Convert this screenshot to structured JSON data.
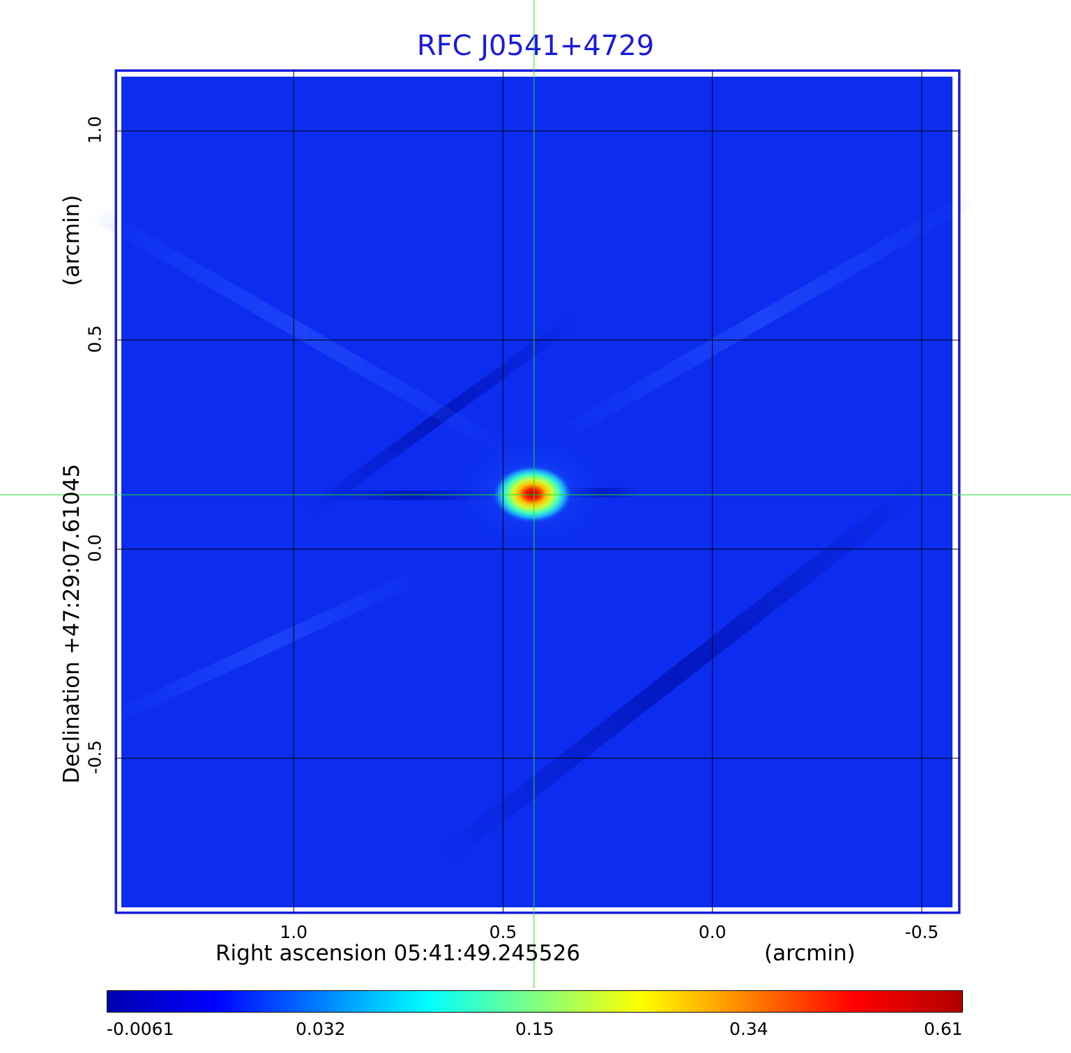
{
  "chart_data": {
    "type": "heatmap",
    "title": "RFC J0541+4729",
    "title_color": "#1a1adc",
    "xlabel": "Right ascension  05:41:49.245526",
    "xunit": "(arcmin)",
    "ylabel": "Declination  +47:29:07.61045",
    "yunit": "(arcmin)",
    "x_ticks": [
      "1.0",
      "0.5",
      "0.0",
      "-0.5"
    ],
    "x_tick_values": [
      1.0,
      0.5,
      0.0,
      -0.5
    ],
    "y_ticks": [
      "1.0",
      "0.5",
      "0.0",
      "-0.5"
    ],
    "y_tick_values": [
      1.0,
      0.5,
      0.0,
      -0.5
    ],
    "xlim": [
      1.425,
      -0.59
    ],
    "ylim": [
      -0.87,
      1.145
    ],
    "grid": true,
    "crosshair": {
      "x": 0.426,
      "y": 0.13,
      "color": "#22dd22"
    },
    "peak": {
      "x": 0.43,
      "y": 0.135,
      "value": 0.61
    },
    "colorbar": {
      "ticks": [
        "-0.0061",
        "0.032",
        "0.15",
        "0.34",
        "0.61"
      ],
      "colors": [
        "#0000b0",
        "#0000ff",
        "#0080ff",
        "#00ffff",
        "#80ff80",
        "#ffff00",
        "#ff8000",
        "#ff0000",
        "#b00000"
      ]
    },
    "background_color": "#0c2df0"
  }
}
